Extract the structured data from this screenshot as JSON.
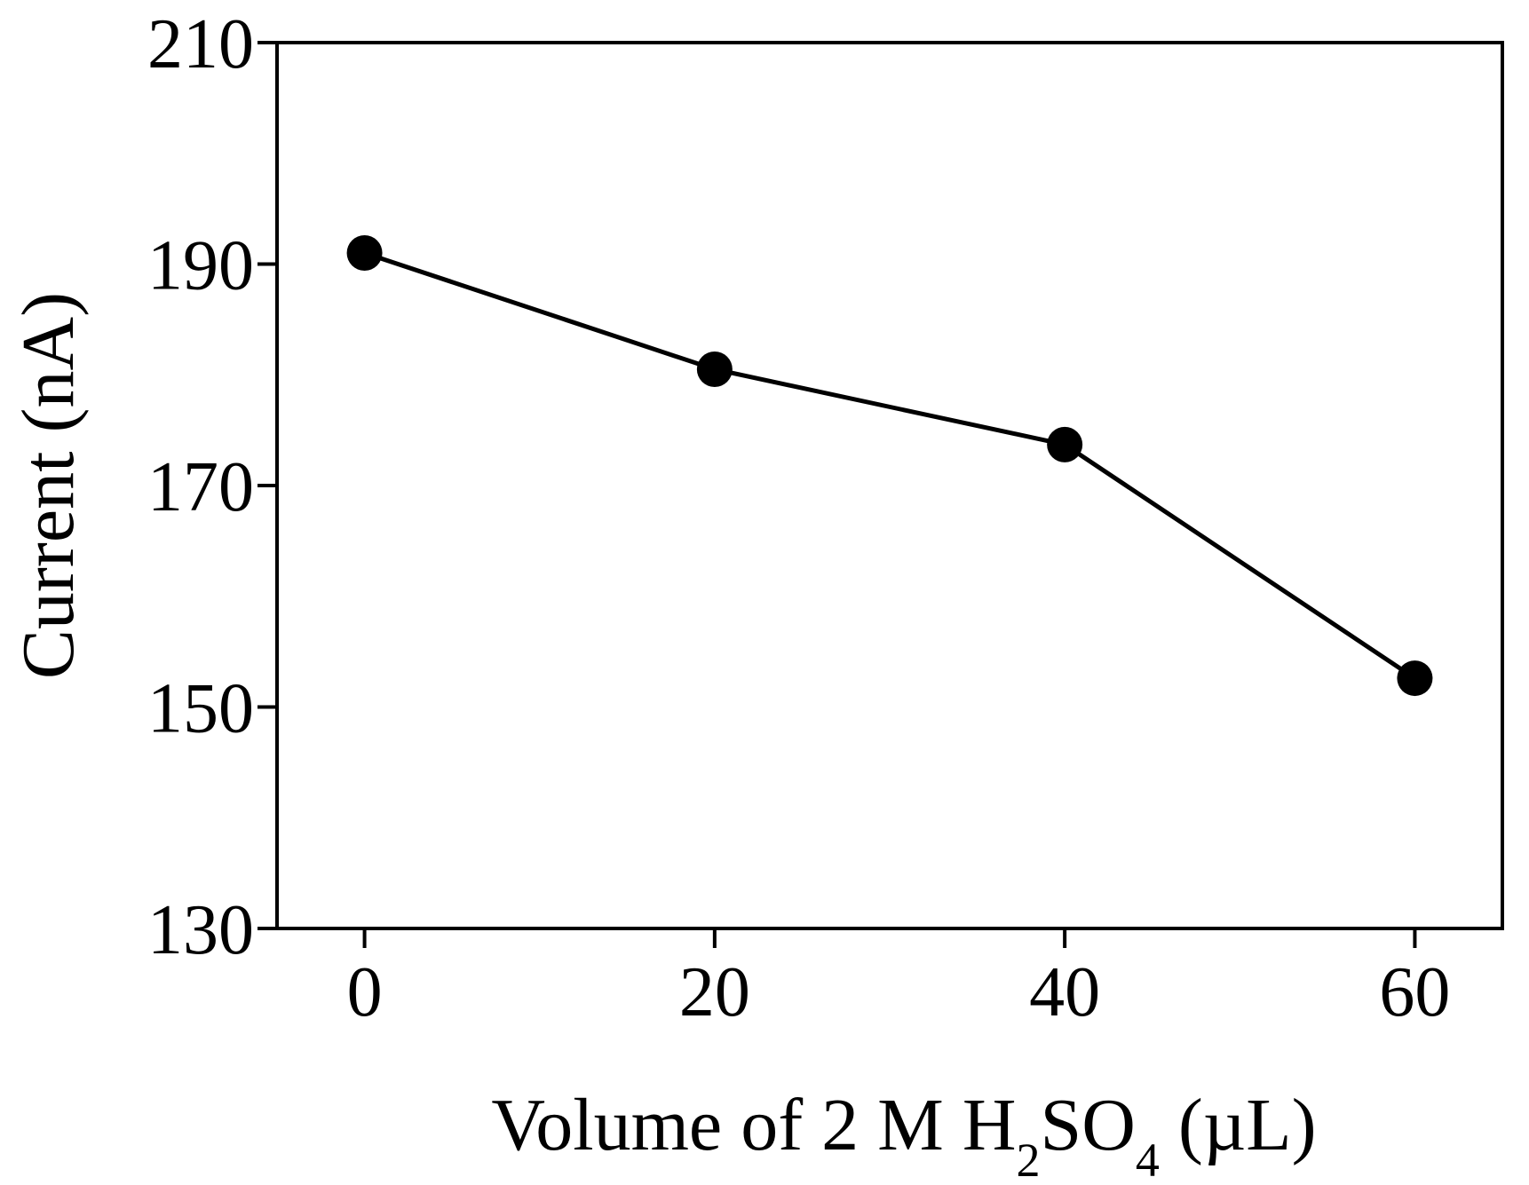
{
  "chart_data": {
    "type": "line",
    "xlabel": {
      "text": "Volume of 2 M H",
      "sub1": "2",
      "mid": "SO",
      "sub2": "4",
      "tail": " (µL)"
    },
    "ylabel": "Current (nA)",
    "xlim": [
      -5,
      65
    ],
    "ylim": [
      130,
      210
    ],
    "xticks": [
      0,
      20,
      40,
      60
    ],
    "yticks": [
      130,
      150,
      170,
      190,
      210
    ],
    "grid": false,
    "series": [
      {
        "x": [
          0,
          20,
          40,
          60
        ],
        "y": [
          191,
          180.5,
          173.7,
          152.6
        ],
        "marker": "filled-circle",
        "color": "#000000"
      }
    ]
  }
}
